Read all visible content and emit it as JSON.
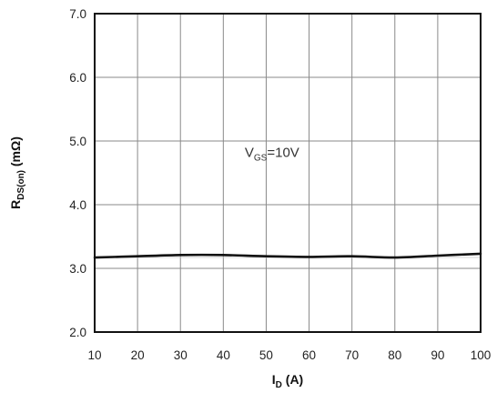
{
  "chart_data": {
    "type": "line",
    "title": "",
    "xlabel": {
      "main": "I",
      "sub": "D",
      "unit": " (A)"
    },
    "ylabel": {
      "main": "R",
      "sub": "DS(on)",
      "unit": " (mΩ)"
    },
    "xlim": [
      10,
      100
    ],
    "ylim": [
      2.0,
      7.0
    ],
    "x_ticks": [
      10,
      20,
      30,
      40,
      50,
      60,
      70,
      80,
      90,
      100
    ],
    "x_tick_labels": [
      "10",
      "20",
      "30",
      "40",
      "50",
      "60",
      "70",
      "80",
      "90",
      "100"
    ],
    "y_ticks": [
      2.0,
      3.0,
      4.0,
      5.0,
      6.0,
      7.0
    ],
    "y_tick_labels": [
      "2.0",
      "3.0",
      "4.0",
      "5.0",
      "6.0",
      "7.0"
    ],
    "grid": true,
    "annotation": {
      "main": "V",
      "sub": "GS",
      "rest": "=10V",
      "x": 45,
      "y": 4.75
    },
    "series": [
      {
        "color": "#111111",
        "x": [
          10,
          20,
          30,
          40,
          50,
          60,
          70,
          80,
          90,
          100
        ],
        "y": [
          3.17,
          3.19,
          3.21,
          3.21,
          3.19,
          3.18,
          3.19,
          3.17,
          3.2,
          3.23
        ]
      }
    ]
  }
}
